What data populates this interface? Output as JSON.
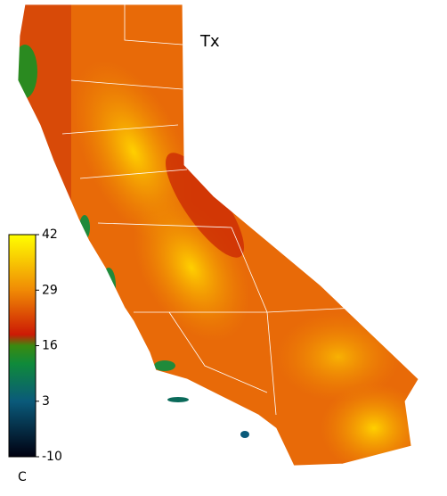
{
  "title": "Tx",
  "colorbar": {
    "unit": "C",
    "range": [
      -10,
      42
    ],
    "ticks": [
      -10,
      3,
      16,
      29,
      42
    ]
  }
}
